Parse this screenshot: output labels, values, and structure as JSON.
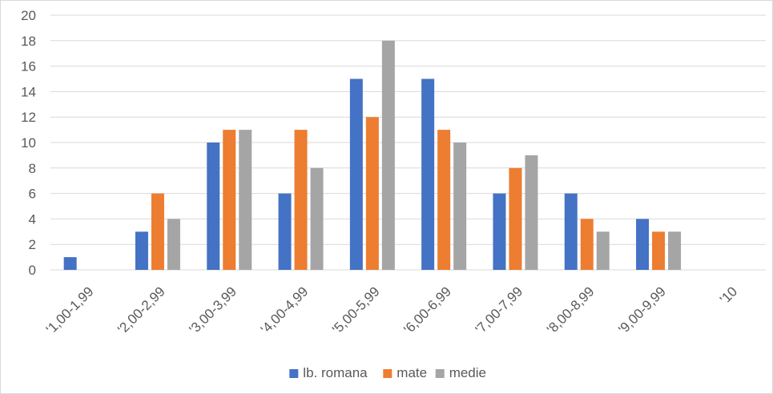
{
  "chart_data": {
    "type": "bar",
    "categories": [
      "'1,00-1,99",
      "'2,00-2,99",
      "'3,00-3,99",
      "'4,00-4,99",
      "'5,00-5,99",
      "'6,00-6,99",
      "'7,00-7,99",
      "'8,00-8,99",
      "'9,00-9,99",
      "'10"
    ],
    "series": [
      {
        "name": "lb. romana",
        "color": "#4472c4",
        "values": [
          1,
          3,
          10,
          6,
          15,
          15,
          6,
          6,
          4,
          0
        ]
      },
      {
        "name": "mate",
        "color": "#ed7d31",
        "values": [
          0,
          6,
          11,
          11,
          12,
          11,
          8,
          4,
          3,
          0
        ]
      },
      {
        "name": "medie",
        "color": "#a5a5a5",
        "values": [
          0,
          4,
          11,
          8,
          18,
          10,
          9,
          3,
          3,
          0
        ]
      }
    ],
    "ylim": [
      0,
      20
    ],
    "yticks": [
      0,
      2,
      4,
      6,
      8,
      10,
      12,
      14,
      16,
      18,
      20
    ],
    "grid": true,
    "legend_position": "bottom"
  }
}
